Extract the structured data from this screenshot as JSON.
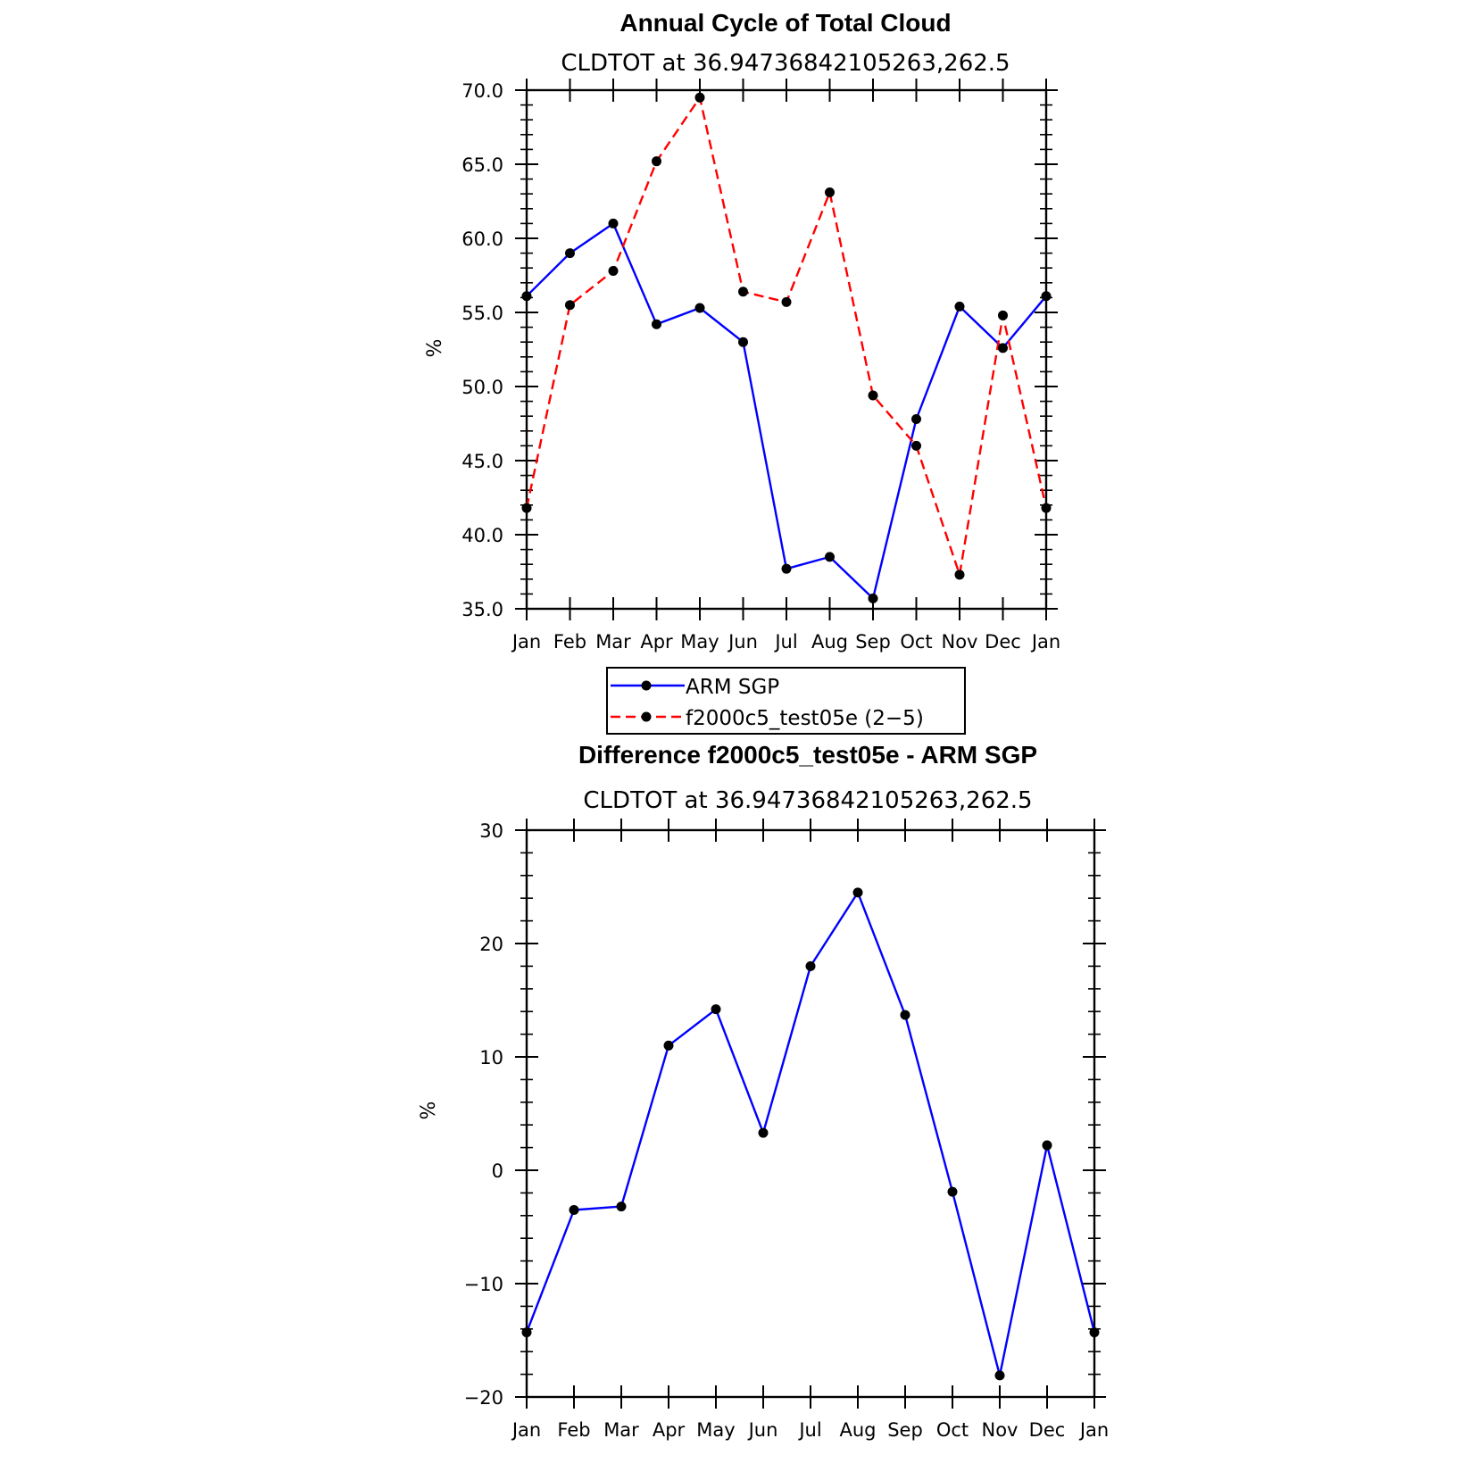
{
  "chart_data": [
    {
      "type": "line",
      "title": "Annual Cycle of Total Cloud",
      "subtitle": "CLDTOT at 36.94736842105263,262.5",
      "ylabel": "%",
      "ylim": [
        35,
        70
      ],
      "yticks": [
        "35.0",
        "40.0",
        "45.0",
        "50.0",
        "55.0",
        "60.0",
        "65.0",
        "70.0"
      ],
      "categories": [
        "Jan",
        "Feb",
        "Mar",
        "Apr",
        "May",
        "Jun",
        "Jul",
        "Aug",
        "Sep",
        "Oct",
        "Nov",
        "Dec",
        "Jan"
      ],
      "series": [
        {
          "name": "ARM SGP",
          "color": "#0000ff",
          "dash": "solid",
          "values": [
            56.1,
            59.0,
            61.0,
            54.2,
            55.3,
            53.0,
            37.7,
            38.5,
            35.7,
            47.8,
            55.4,
            52.6,
            56.1
          ]
        },
        {
          "name": "f2000c5_test05e (2−5)",
          "color": "#ff0000",
          "dash": "dashed",
          "values": [
            41.8,
            55.5,
            57.8,
            65.2,
            69.5,
            56.4,
            55.7,
            63.1,
            49.4,
            46.0,
            37.3,
            54.8,
            41.8
          ]
        }
      ],
      "legend_position": "bottom-center"
    },
    {
      "type": "line",
      "title": "Difference f2000c5_test05e - ARM SGP",
      "subtitle": "CLDTOT at 36.94736842105263,262.5",
      "ylabel": "%",
      "ylim": [
        -20,
        30
      ],
      "yticks": [
        "−20",
        "−10",
        "0",
        "10",
        "20",
        "30"
      ],
      "categories": [
        "Jan",
        "Feb",
        "Mar",
        "Apr",
        "May",
        "Jun",
        "Jul",
        "Aug",
        "Sep",
        "Oct",
        "Nov",
        "Dec",
        "Jan"
      ],
      "series": [
        {
          "color": "#0000ff",
          "dash": "solid",
          "values": [
            -14.3,
            -3.5,
            -3.2,
            11.0,
            14.2,
            3.3,
            18.0,
            24.5,
            13.7,
            -1.9,
            -18.1,
            2.2,
            -14.3
          ]
        }
      ]
    }
  ]
}
